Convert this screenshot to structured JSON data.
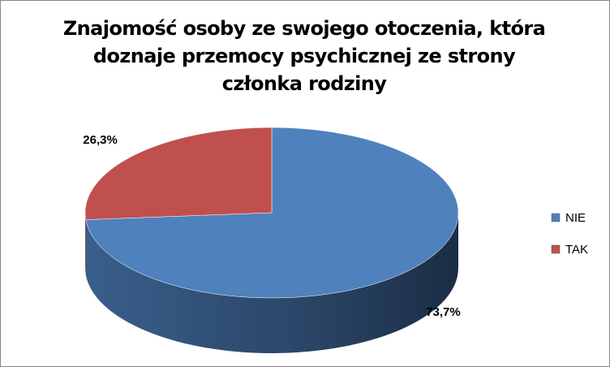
{
  "chart_data": {
    "type": "pie3d",
    "title": "Znajomość osoby ze swojego otoczenia, która doznaje przemocy psychicznej ze strony członka rodziny",
    "categories": [
      "NIE",
      "TAK"
    ],
    "values": [
      73.7,
      26.3
    ],
    "value_labels": [
      "73,7%",
      "26,3%"
    ],
    "colors": [
      "#4f81bd",
      "#c0504d"
    ],
    "legend": "right"
  }
}
